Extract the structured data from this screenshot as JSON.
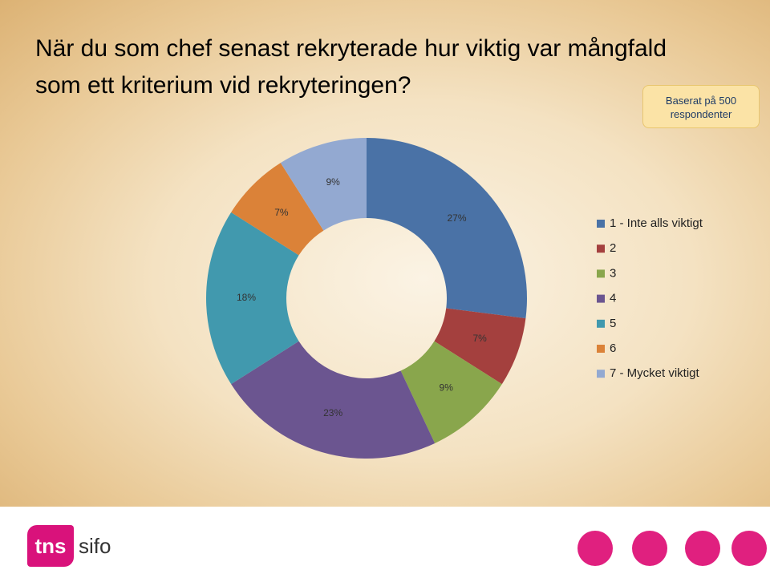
{
  "chart_data": {
    "type": "donut",
    "title": "När du som chef senast rekryterade hur viktig var mångfald som ett kriterium vid rekryteringen?",
    "note": "Baserat på 500 respondenter",
    "categories": [
      "1 - Inte alls viktigt",
      "2",
      "3",
      "4",
      "5",
      "6",
      "7 - Mycket viktigt"
    ],
    "values": [
      27,
      7,
      9,
      23,
      18,
      7,
      9
    ],
    "value_labels": [
      "27%",
      "7%",
      "9%",
      "23%",
      "18%",
      "7%",
      "9%"
    ],
    "colors": [
      "#4a72a6",
      "#a4403e",
      "#89a64c",
      "#6b5590",
      "#4199ae",
      "#db8238",
      "#93a9d1"
    ],
    "legend": "right"
  },
  "logo": {
    "left": "tns",
    "right": "sifo"
  }
}
